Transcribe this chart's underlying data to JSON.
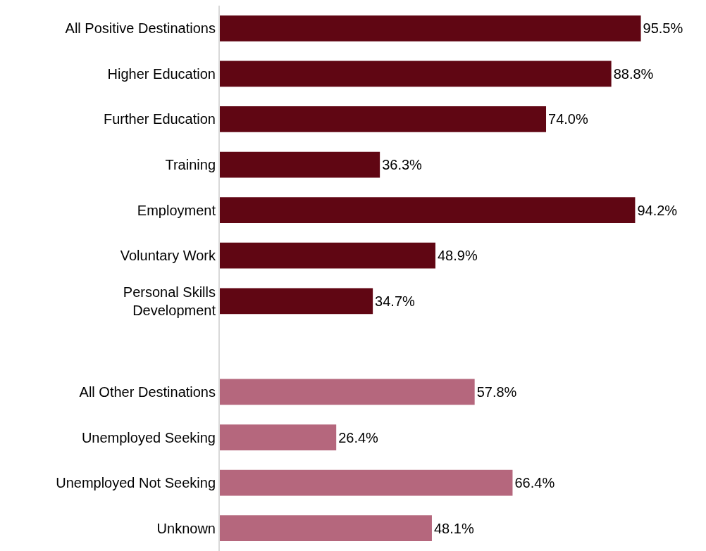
{
  "chart_data": {
    "type": "bar",
    "orientation": "horizontal",
    "categories": [
      "All Positive Destinations",
      "Higher Education",
      "Further Education",
      "Training",
      "Employment",
      "Voluntary Work",
      "Personal Skills\nDevelopment",
      null,
      "All Other Destinations",
      "Unemployed Seeking",
      "Unemployed Not Seeking",
      "Unknown"
    ],
    "values": [
      95.5,
      88.8,
      74.0,
      36.3,
      94.2,
      48.9,
      34.7,
      null,
      57.8,
      26.4,
      66.4,
      48.1
    ],
    "colors": [
      "#600613",
      "#600613",
      "#600613",
      "#600613",
      "#600613",
      "#600613",
      "#600613",
      null,
      "#b5677d",
      "#b5677d",
      "#b5677d",
      "#b5677d"
    ],
    "value_labels": [
      "95.5%",
      "88.8%",
      "74.0%",
      "36.3%",
      "94.2%",
      "48.9%",
      "34.7%",
      null,
      "57.8%",
      "26.4%",
      "66.4%",
      "48.1%"
    ],
    "tick_labels": "y",
    "grid": false,
    "legend": false
  }
}
